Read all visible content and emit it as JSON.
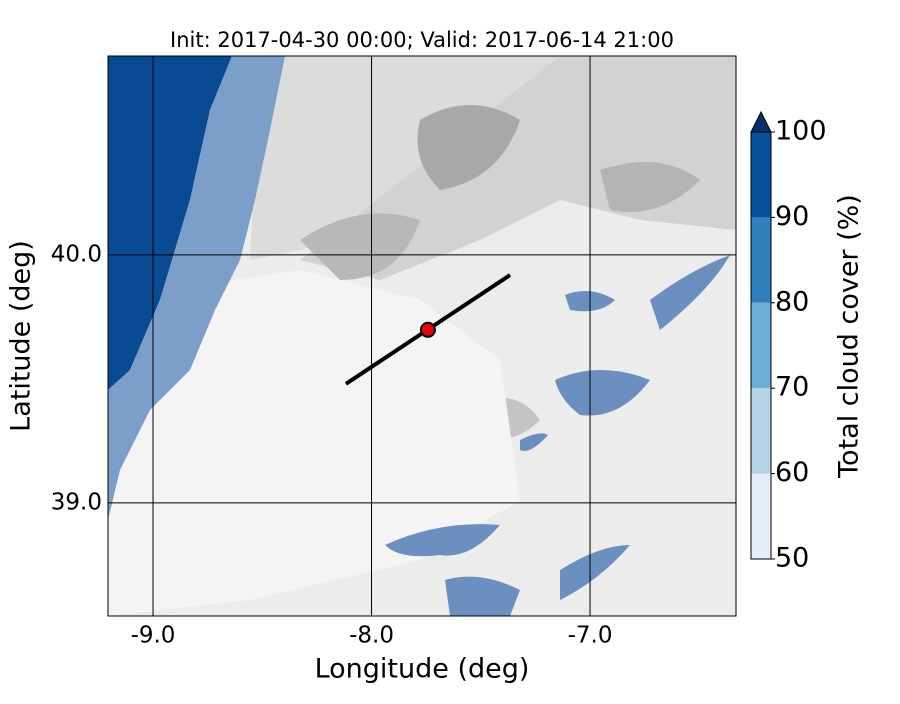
{
  "chart_data": {
    "type": "map",
    "title": "Init: 2017-04-30 00:00; Valid: 2017-06-14 21:00",
    "xlabel": "Longitude (deg)",
    "ylabel": "Latitude (deg)",
    "xlim": [
      -9.206,
      -6.332
    ],
    "ylim": [
      38.544,
      40.802
    ],
    "xticks": [
      {
        "value": -9,
        "label": "-9.0"
      },
      {
        "value": -8,
        "label": "-8.0"
      },
      {
        "value": -7,
        "label": "-7.0"
      }
    ],
    "yticks": [
      {
        "value": 39,
        "label": "39.0"
      },
      {
        "value": 40,
        "label": "40.0"
      }
    ],
    "grid": true,
    "section_line": {
      "x": [
        -8.117,
        -7.366
      ],
      "y": [
        39.48,
        39.919
      ],
      "color": "#000000"
    },
    "point": {
      "x": -7.742,
      "y": 39.698,
      "color": "#e8000b"
    },
    "colorbar": {
      "label": "Total cloud cover (%)",
      "levels": [
        50,
        60,
        70,
        80,
        90,
        100
      ],
      "colors": [
        "#e3eef8",
        "#b5d3e9",
        "#6baed6",
        "#3080bd",
        "#08519c"
      ],
      "extend_color": "#08306b"
    }
  }
}
